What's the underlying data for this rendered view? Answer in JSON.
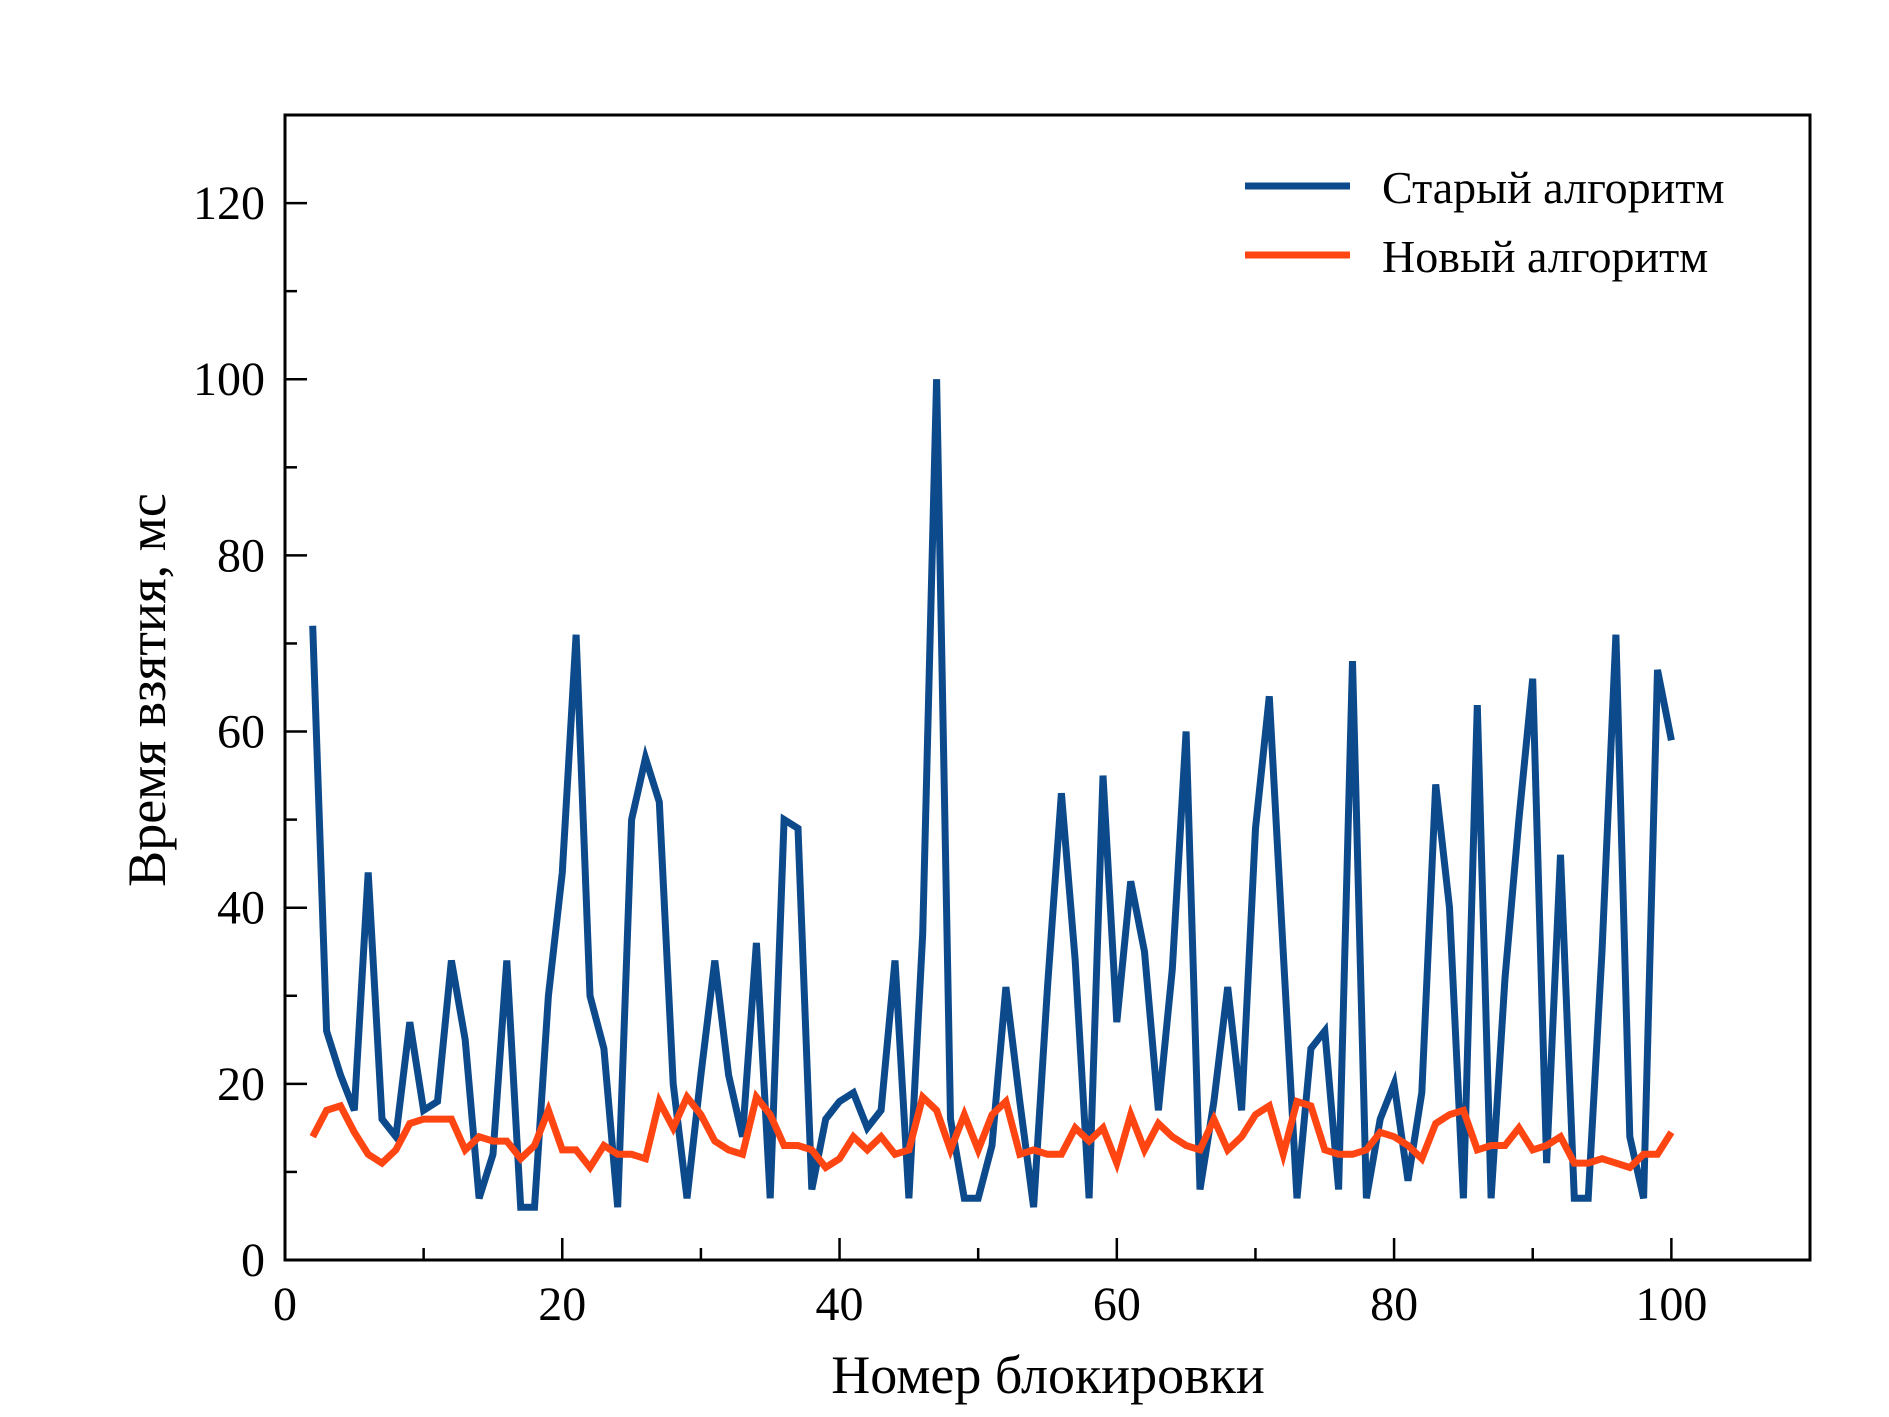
{
  "chart_data": {
    "type": "line",
    "title": "",
    "xlabel": "Номер блокировки",
    "ylabel": "Время взятия, мс",
    "xlim": [
      0,
      110
    ],
    "ylim": [
      0,
      130
    ],
    "x_ticks": [
      0,
      20,
      40,
      60,
      80,
      100
    ],
    "y_ticks": [
      0,
      20,
      40,
      60,
      80,
      100,
      120
    ],
    "x_tick_labels": [
      "0",
      "20",
      "40",
      "60",
      "80",
      "100"
    ],
    "y_tick_labels": [
      "0",
      "20",
      "40",
      "60",
      "80",
      "100",
      "120"
    ],
    "grid": false,
    "legend_position": "top-right",
    "x": [
      2,
      3,
      4,
      5,
      6,
      7,
      8,
      9,
      10,
      11,
      12,
      13,
      14,
      15,
      16,
      17,
      18,
      19,
      20,
      21,
      22,
      23,
      24,
      25,
      26,
      27,
      28,
      29,
      30,
      31,
      32,
      33,
      34,
      35,
      36,
      37,
      38,
      39,
      40,
      41,
      42,
      43,
      44,
      45,
      46,
      47,
      48,
      49,
      50,
      51,
      52,
      53,
      54,
      55,
      56,
      57,
      58,
      59,
      60,
      61,
      62,
      63,
      64,
      65,
      66,
      67,
      68,
      69,
      70,
      71,
      72,
      73,
      74,
      75,
      76,
      77,
      78,
      79,
      80,
      81,
      82,
      83,
      84,
      85,
      86,
      87,
      88,
      89,
      90,
      91,
      92,
      93,
      94,
      95,
      96,
      97,
      98,
      99,
      100
    ],
    "series": [
      {
        "name": "Старый алгоритм",
        "color": "#0d4a8c",
        "values": [
          72,
          26,
          21,
          17,
          44,
          16,
          14,
          27,
          17,
          18,
          34,
          25,
          7,
          12,
          34,
          6,
          6,
          30,
          44,
          71,
          30,
          24,
          6,
          50,
          57,
          52,
          20,
          7,
          21,
          34,
          21,
          14,
          36,
          7,
          50,
          49,
          8,
          16,
          18,
          19,
          15,
          17,
          34,
          7,
          37,
          100,
          16,
          7,
          7,
          13,
          31,
          18,
          6,
          31,
          53,
          34,
          7,
          55,
          27,
          43,
          35,
          17,
          33,
          60,
          8,
          18,
          31,
          17,
          49,
          64,
          35,
          7,
          24,
          26,
          8,
          68,
          7,
          16,
          20,
          9,
          19,
          54,
          40,
          7,
          63,
          7,
          32,
          50,
          66,
          11,
          46,
          7,
          7,
          35,
          71,
          14,
          7,
          67,
          59
        ]
      },
      {
        "name": "Новый алгоритм",
        "color": "#ff4512",
        "values": [
          14,
          17,
          17.5,
          14.5,
          12,
          11,
          12.5,
          15.5,
          16,
          16,
          16,
          12.5,
          14,
          13.5,
          13.5,
          11.5,
          13,
          17,
          12.5,
          12.5,
          10.5,
          13,
          12,
          12,
          11.5,
          18,
          15,
          18.5,
          16.5,
          13.5,
          12.5,
          12,
          18.5,
          16.5,
          13,
          13,
          12.5,
          10.5,
          11.5,
          14,
          12.5,
          14,
          12,
          12.5,
          18.5,
          17,
          12.5,
          16.5,
          12.5,
          16.5,
          18,
          12,
          12.5,
          12,
          12,
          15,
          13.5,
          15,
          11,
          16.5,
          12.5,
          15.5,
          14,
          13,
          12.5,
          16,
          12.5,
          14,
          16.5,
          17.5,
          12,
          18,
          17.5,
          12.5,
          12,
          12,
          12.5,
          14.5,
          14,
          13,
          11.5,
          15.5,
          16.5,
          17,
          12.5,
          13,
          13,
          15,
          12.5,
          13,
          14,
          11,
          11,
          11.5,
          11,
          10.5,
          12,
          12,
          14.5
        ]
      }
    ]
  }
}
